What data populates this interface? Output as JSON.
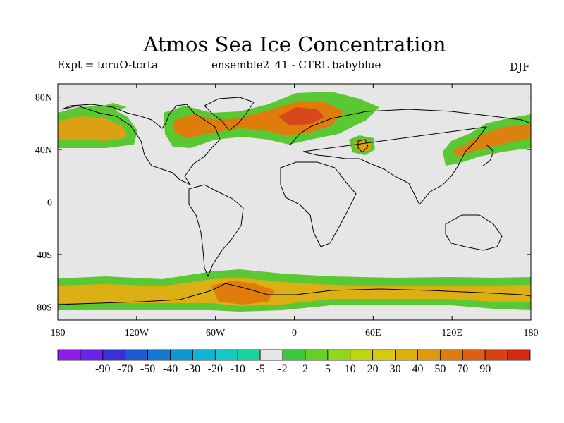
{
  "header": {
    "title": "Atmos Sea Ice Concentration",
    "left_label": "Expt = tcruO-tcrta",
    "center_label": "ensemble2_41 - CTRL babyblue",
    "right_label": "DJF"
  },
  "map": {
    "projection": "cylindrical-equidistant",
    "lon_range": [
      -180,
      180
    ],
    "lat_range": [
      -90,
      90
    ],
    "background_color": "#e6e6e6",
    "lat_ticks": [
      {
        "value": 80,
        "label": "80N"
      },
      {
        "value": 40,
        "label": "40N"
      },
      {
        "value": 0,
        "label": "0"
      },
      {
        "value": -40,
        "label": "40S"
      },
      {
        "value": -80,
        "label": "80S"
      }
    ],
    "lon_ticks": [
      {
        "value": -180,
        "label": "180"
      },
      {
        "value": -120,
        "label": "120W"
      },
      {
        "value": -60,
        "label": "60W"
      },
      {
        "value": 0,
        "label": "0"
      },
      {
        "value": 60,
        "label": "60E"
      },
      {
        "value": 120,
        "label": "120E"
      },
      {
        "value": 180,
        "label": "180"
      }
    ]
  },
  "colorbar": {
    "colors": [
      "#8c1ee8",
      "#6b22e6",
      "#3a30d8",
      "#1e5ad4",
      "#1478d2",
      "#0c98d0",
      "#10b4d0",
      "#14c8c4",
      "#18d2a0",
      "#e6e6e6",
      "#3cc83c",
      "#64d028",
      "#90d81c",
      "#bcd614",
      "#d8c80e",
      "#dcb00c",
      "#e0980c",
      "#e07c0c",
      "#dc600e",
      "#d64212",
      "#d02a14"
    ],
    "labels": [
      "-90",
      "-70",
      "-50",
      "-40",
      "-30",
      "-20",
      "-10",
      "-5",
      "-2",
      "2",
      "5",
      "10",
      "20",
      "30",
      "40",
      "50",
      "70",
      "90"
    ]
  }
}
